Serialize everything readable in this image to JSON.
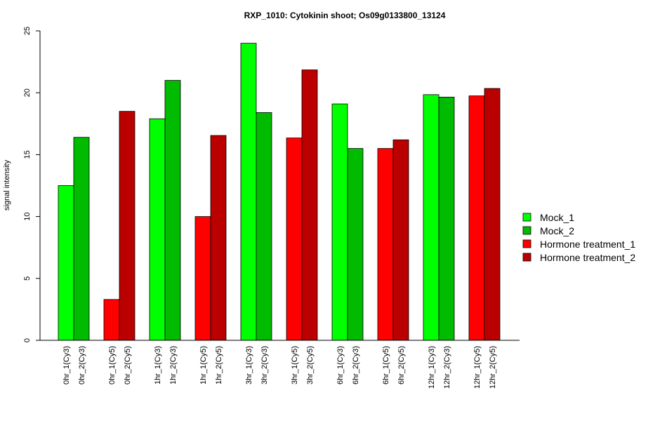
{
  "chart_data": {
    "type": "bar",
    "title": "RXP_1010: Cytokinin shoot; Os09g0133800_13124",
    "ylabel": "signal intensity",
    "xlabel": "",
    "ylim": [
      0,
      25
    ],
    "yticks": [
      0,
      5,
      10,
      15,
      20,
      25
    ],
    "grid": false,
    "legend_position": "right",
    "categories": [
      "0hr_1(Cy3)",
      "0hr_2(Cy3)",
      "0hr_1(Cy5)",
      "0hr_2(Cy5)",
      "1hr_1(Cy3)",
      "1hr_2(Cy3)",
      "1hr_1(Cy5)",
      "1hr_2(Cy5)",
      "3hr_1(Cy3)",
      "3hr_2(Cy3)",
      "3hr_1(Cy5)",
      "3hr_2(Cy5)",
      "6hr_1(Cy3)",
      "6hr_2(Cy3)",
      "6hr_1(Cy5)",
      "6hr_2(Cy5)",
      "12hr_1(Cy3)",
      "12hr_2(Cy3)",
      "12hr_1(Cy5)",
      "12hr_2(Cy5)"
    ],
    "values": [
      12.5,
      16.4,
      3.3,
      18.5,
      17.9,
      21.0,
      10.0,
      16.55,
      24.0,
      18.4,
      16.35,
      21.85,
      19.1,
      15.5,
      15.5,
      16.2,
      19.85,
      19.65,
      19.75,
      20.35
    ],
    "bar_series": [
      0,
      1,
      2,
      3,
      0,
      1,
      2,
      3,
      0,
      1,
      2,
      3,
      0,
      1,
      2,
      3,
      0,
      1,
      2,
      3
    ],
    "series": [
      {
        "name": "Mock_1",
        "color": "#00ff00"
      },
      {
        "name": "Mock_2",
        "color": "#00bb00"
      },
      {
        "name": "Hormone treatment_1",
        "color": "#ff0000"
      },
      {
        "name": "Hormone treatment_2",
        "color": "#bb0000"
      }
    ]
  }
}
